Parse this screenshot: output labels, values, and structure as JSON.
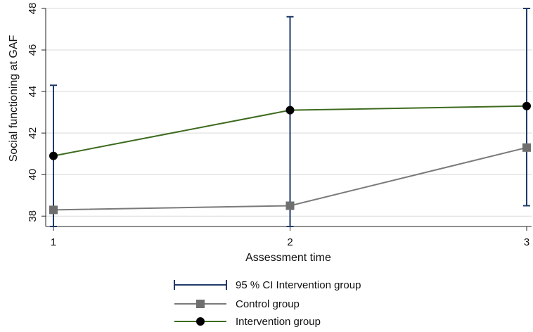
{
  "chart_data": {
    "type": "line",
    "xlabel": "Assessment time",
    "ylabel": "Social functioning at GAF",
    "x": [
      1,
      2,
      3
    ],
    "xlim": [
      1,
      3
    ],
    "ylim": [
      37.5,
      48
    ],
    "x_ticks": [
      "1",
      "2",
      "3"
    ],
    "y_ticks": [
      "38",
      "40",
      "42",
      "44",
      "46",
      "48"
    ],
    "grid": "horizontal",
    "legend_position": "bottom",
    "error_bars": {
      "name": "95 % CI Intervention group",
      "color": "#1f3a6a",
      "low": [
        37.5,
        37.5,
        38.5
      ],
      "high": [
        44.3,
        47.6,
        48.0
      ]
    },
    "series": [
      {
        "name": "Control group",
        "marker": "square",
        "line_color": "#7a7a7a",
        "marker_color": "#6f6f6f",
        "values": [
          38.3,
          38.5,
          41.3
        ]
      },
      {
        "name": "Intervention group",
        "marker": "circle",
        "line_color": "#3d6b1e",
        "marker_color": "#000000",
        "values": [
          40.9,
          43.1,
          43.3
        ]
      }
    ]
  }
}
